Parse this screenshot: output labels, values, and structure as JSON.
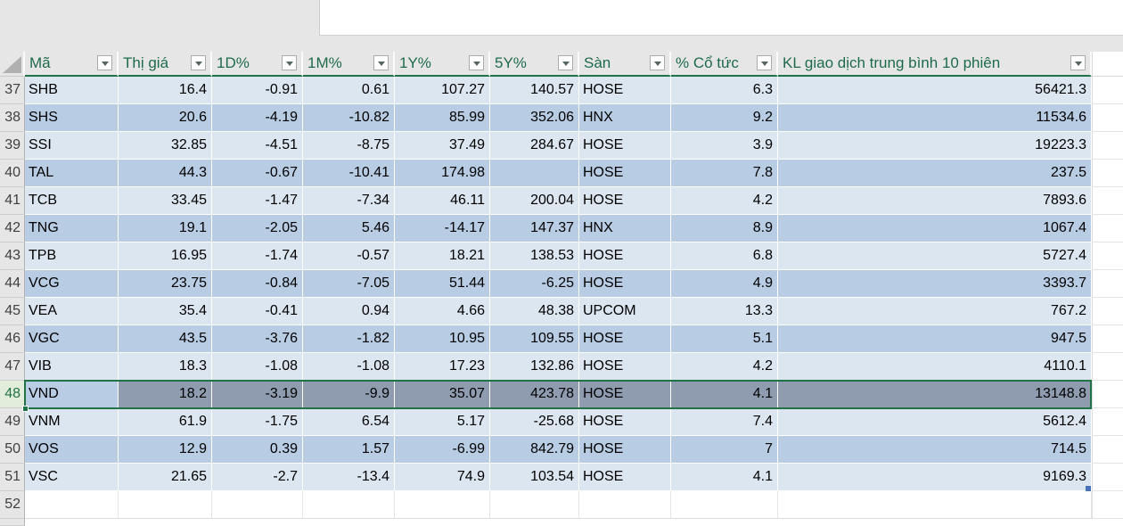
{
  "window": {
    "formula_bar_value": ""
  },
  "colors": {
    "accent_green": "#217346",
    "band_light": "#dce6f1",
    "band_dark": "#b8cce4",
    "selection_fill": "#8f9cb0",
    "chrome_gray": "#e6e6e6",
    "header_text_green": "#1e6b4c",
    "table_handle_blue": "#4a72b8"
  },
  "icons": {
    "filter_dropdown": "chevron-down-icon",
    "corner": "select-all-triangle-icon"
  },
  "table": {
    "columns": [
      {
        "id": "ma",
        "label": "Mã",
        "align": "left"
      },
      {
        "id": "thi_gia",
        "label": "Thị giá",
        "align": "right"
      },
      {
        "id": "d1",
        "label": "1D%",
        "align": "right"
      },
      {
        "id": "m1",
        "label": "1M%",
        "align": "right"
      },
      {
        "id": "y1",
        "label": "1Y%",
        "align": "right"
      },
      {
        "id": "y5",
        "label": "5Y%",
        "align": "right"
      },
      {
        "id": "san",
        "label": "Sàn",
        "align": "left"
      },
      {
        "id": "co_tuc",
        "label": "% Cổ tức",
        "align": "right"
      },
      {
        "id": "kl",
        "label": "KL giao dịch trung bình 10 phiên",
        "align": "right"
      }
    ],
    "rows": [
      {
        "num": "37",
        "cells": [
          "SHB",
          "16.4",
          "-0.91",
          "0.61",
          "107.27",
          "140.57",
          "HOSE",
          "6.3",
          "56421.3"
        ]
      },
      {
        "num": "38",
        "cells": [
          "SHS",
          "20.6",
          "-4.19",
          "-10.82",
          "85.99",
          "352.06",
          "HNX",
          "9.2",
          "11534.6"
        ]
      },
      {
        "num": "39",
        "cells": [
          "SSI",
          "32.85",
          "-4.51",
          "-8.75",
          "37.49",
          "284.67",
          "HOSE",
          "3.9",
          "19223.3"
        ]
      },
      {
        "num": "40",
        "cells": [
          "TAL",
          "44.3",
          "-0.67",
          "-10.41",
          "174.98",
          "",
          "HOSE",
          "7.8",
          "237.5"
        ]
      },
      {
        "num": "41",
        "cells": [
          "TCB",
          "33.45",
          "-1.47",
          "-7.34",
          "46.11",
          "200.04",
          "HOSE",
          "4.2",
          "7893.6"
        ]
      },
      {
        "num": "42",
        "cells": [
          "TNG",
          "19.1",
          "-2.05",
          "5.46",
          "-14.17",
          "147.37",
          "HNX",
          "8.9",
          "1067.4"
        ]
      },
      {
        "num": "43",
        "cells": [
          "TPB",
          "16.95",
          "-1.74",
          "-0.57",
          "18.21",
          "138.53",
          "HOSE",
          "6.8",
          "5727.4"
        ]
      },
      {
        "num": "44",
        "cells": [
          "VCG",
          "23.75",
          "-0.84",
          "-7.05",
          "51.44",
          "-6.25",
          "HOSE",
          "4.9",
          "3393.7"
        ]
      },
      {
        "num": "45",
        "cells": [
          "VEA",
          "35.4",
          "-0.41",
          "0.94",
          "4.66",
          "48.38",
          "UPCOM",
          "13.3",
          "767.2"
        ]
      },
      {
        "num": "46",
        "cells": [
          "VGC",
          "43.5",
          "-3.76",
          "-1.82",
          "10.95",
          "109.55",
          "HOSE",
          "5.1",
          "947.5"
        ]
      },
      {
        "num": "47",
        "cells": [
          "VIB",
          "18.3",
          "-1.08",
          "-1.08",
          "17.23",
          "132.86",
          "HOSE",
          "4.2",
          "4110.1"
        ]
      },
      {
        "num": "48",
        "cells": [
          "VND",
          "18.2",
          "-3.19",
          "-9.9",
          "35.07",
          "423.78",
          "HOSE",
          "4.1",
          "13148.8"
        ],
        "selected": true
      },
      {
        "num": "49",
        "cells": [
          "VNM",
          "61.9",
          "-1.75",
          "6.54",
          "5.17",
          "-25.68",
          "HOSE",
          "7.4",
          "5612.4"
        ]
      },
      {
        "num": "50",
        "cells": [
          "VOS",
          "12.9",
          "0.39",
          "1.57",
          "-6.99",
          "842.79",
          "HOSE",
          "7",
          "714.5"
        ]
      },
      {
        "num": "51",
        "cells": [
          "VSC",
          "21.65",
          "-2.7",
          "-13.4",
          "74.9",
          "103.54",
          "HOSE",
          "4.1",
          "9169.3"
        ]
      }
    ],
    "empty_row_num": "52",
    "selection": {
      "selected_row": "48",
      "active_cell_value": "VND"
    }
  }
}
